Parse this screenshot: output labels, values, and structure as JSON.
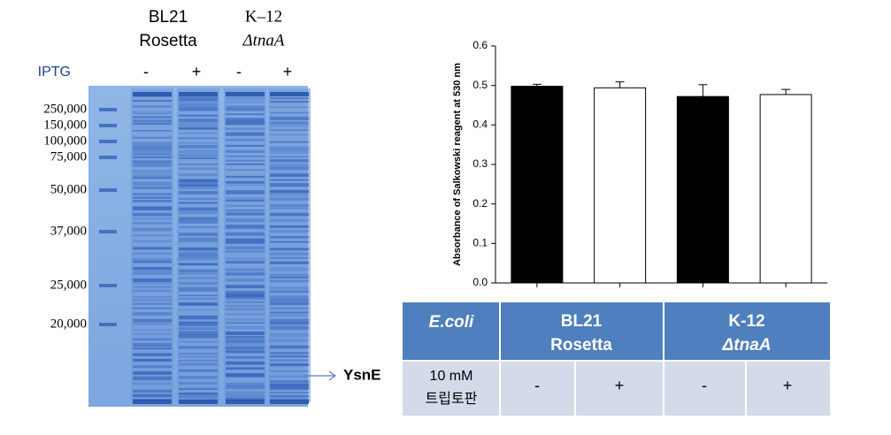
{
  "gel": {
    "strains": [
      {
        "lines": [
          "BL21",
          "Rosetta"
        ]
      },
      {
        "lines": [
          "K–12",
          "ΔtnaA"
        ]
      }
    ],
    "inducer": "IPTG",
    "lanes": [
      "-",
      "+",
      "-",
      "+"
    ],
    "markers": [
      "250,000",
      "150,000",
      "100,000",
      "75,000",
      "50,000",
      "37,000",
      "25,000",
      "20,000"
    ],
    "band_label": "YsnE"
  },
  "chart_data": {
    "type": "bar",
    "ylabel": "Absorbance of Salkowski reagent at 530 nm",
    "categories": [
      null,
      null,
      null,
      null
    ],
    "values": [
      0.498,
      0.494,
      0.472,
      0.477
    ],
    "errors": [
      0.005,
      0.015,
      0.03,
      0.013
    ],
    "colors": [
      "#000000",
      "#ffffff",
      "#000000",
      "#ffffff"
    ],
    "ylim": [
      0,
      0.6
    ],
    "yticks": [
      {
        "value": 0,
        "label": "0.0"
      },
      0.1,
      0.2,
      0.3,
      0.4,
      0.5,
      0.6
    ],
    "grid": false
  },
  "table": {
    "header": [
      "E.coli",
      {
        "lines": [
          "BL21",
          "Rosetta"
        ]
      },
      {
        "lines": [
          "K-12",
          "ΔtnaA"
        ]
      }
    ],
    "row": [
      {
        "lines": [
          "10 mM",
          "트립토판"
        ]
      },
      "-",
      "+",
      "-",
      "+"
    ]
  }
}
